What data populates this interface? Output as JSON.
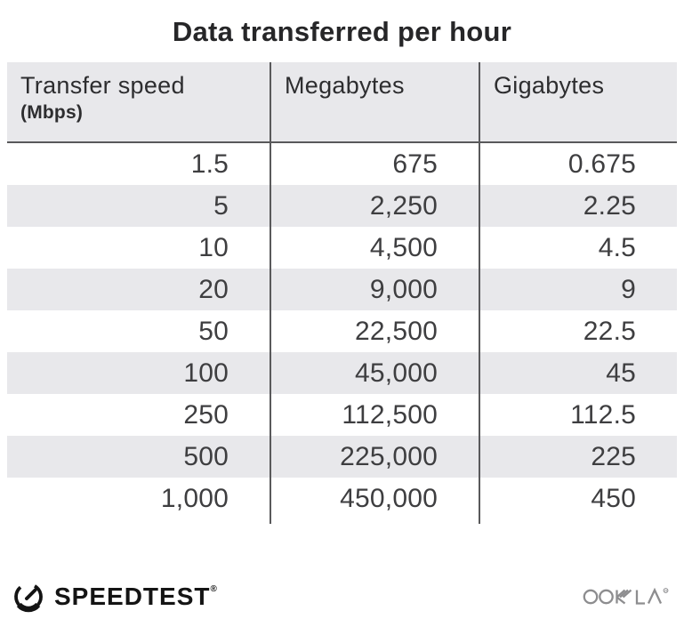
{
  "title": "Data transferred per hour",
  "table": {
    "columns": [
      {
        "label": "Transfer speed",
        "sublabel": "(Mbps)"
      },
      {
        "label": "Megabytes",
        "sublabel": ""
      },
      {
        "label": "Gigabytes",
        "sublabel": ""
      }
    ],
    "rows": [
      [
        "1.5",
        "675",
        "0.675"
      ],
      [
        "5",
        "2,250",
        "2.25"
      ],
      [
        "10",
        "4,500",
        "4.5"
      ],
      [
        "20",
        "9,000",
        "9"
      ],
      [
        "50",
        "22,500",
        "22.5"
      ],
      [
        "100",
        "45,000",
        "45"
      ],
      [
        "250",
        "112,500",
        "112.5"
      ],
      [
        "500",
        "225,000",
        "225"
      ],
      [
        "1,000",
        "450,000",
        "450"
      ]
    ]
  },
  "footer": {
    "speedtest_label": "SPEEDTEST",
    "speedtest_trademark": "®",
    "ookla_label": "OOKLA",
    "ookla_trademark": "®"
  },
  "colors": {
    "stripe": "#e8e8eb",
    "header_bg": "#e8e8eb",
    "divider": "#59595b",
    "text": "#3e3e40",
    "title": "#262628",
    "ookla_gray": "#8d8d8f",
    "speedtest_black": "#141414"
  },
  "chart_data": {
    "type": "table",
    "title": "Data transferred per hour",
    "columns": [
      "Transfer speed (Mbps)",
      "Megabytes",
      "Gigabytes"
    ],
    "rows": [
      [
        1.5,
        675,
        0.675
      ],
      [
        5,
        2250,
        2.25
      ],
      [
        10,
        4500,
        4.5
      ],
      [
        20,
        9000,
        9
      ],
      [
        50,
        22500,
        22.5
      ],
      [
        100,
        45000,
        45
      ],
      [
        250,
        112500,
        112.5
      ],
      [
        500,
        225000,
        225
      ],
      [
        1000,
        450000,
        450
      ]
    ],
    "layout": {
      "striped_rows": true,
      "column_dividers": true,
      "value_alignment": "right"
    }
  }
}
